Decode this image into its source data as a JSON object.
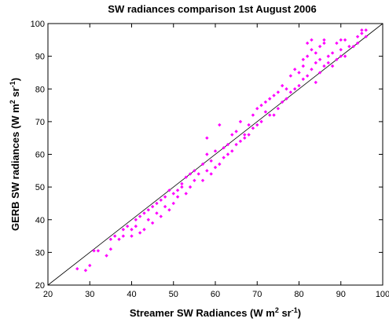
{
  "chart_data": {
    "type": "scatter",
    "title": "SW radiances comparison 1st August 2006",
    "xlabel": [
      "Streamer SW Radiances (W m",
      "2",
      " sr",
      "-1",
      ")"
    ],
    "ylabel": [
      "GERB SW radiances (W m",
      "2",
      " sr",
      "-1",
      ")"
    ],
    "xlim": [
      20,
      100
    ],
    "ylim": [
      20,
      100
    ],
    "xticks": [
      20,
      30,
      40,
      50,
      60,
      70,
      80,
      90,
      100
    ],
    "yticks": [
      20,
      30,
      40,
      50,
      60,
      70,
      80,
      90,
      100
    ],
    "color": "#ff00ff",
    "line_color": "#000000",
    "diagonal": {
      "x": [
        20,
        100
      ],
      "y": [
        20,
        100
      ]
    },
    "series": [
      {
        "x": [
          27,
          29,
          30,
          31,
          32,
          34,
          35,
          35,
          36,
          37,
          38,
          38,
          39,
          40,
          40,
          41,
          41,
          42,
          42,
          43,
          43,
          44,
          44,
          45,
          45,
          46,
          46,
          47,
          47,
          48,
          48,
          49,
          49,
          50,
          50,
          51,
          51,
          52,
          52,
          53,
          53,
          54,
          54,
          55,
          55,
          56,
          57,
          57,
          58,
          58,
          58,
          59,
          59,
          60,
          60,
          61,
          61,
          62,
          62,
          63,
          63,
          64,
          64,
          65,
          65,
          66,
          66,
          67,
          67,
          68,
          68,
          69,
          69,
          70,
          70,
          71,
          71,
          72,
          72,
          73,
          73,
          74,
          74,
          75,
          75,
          76,
          76,
          77,
          77,
          78,
          78,
          79,
          79,
          80,
          80,
          81,
          81,
          81,
          82,
          82,
          82,
          83,
          83,
          83,
          84,
          84,
          84,
          85,
          85,
          85,
          86,
          86,
          86,
          87,
          87,
          88,
          88,
          89,
          89,
          90,
          90,
          90,
          91,
          91,
          92,
          93,
          94,
          94,
          95,
          95,
          96,
          96
        ],
        "values": [
          25,
          24.5,
          26,
          30.5,
          30.5,
          29,
          31,
          34,
          35,
          34,
          37,
          35,
          38,
          35,
          37,
          38,
          40,
          36,
          41,
          37,
          42,
          40,
          43,
          39,
          44,
          42,
          45,
          41,
          46,
          44,
          47,
          49,
          43,
          48,
          45,
          49,
          47,
          51,
          50,
          48,
          53,
          54,
          50,
          52,
          55,
          54,
          57,
          52,
          65,
          60,
          55,
          58,
          54,
          56,
          61,
          57,
          69,
          59,
          62,
          60,
          63,
          66,
          61,
          63,
          67,
          64,
          70,
          66,
          65,
          69,
          66,
          72,
          68,
          69,
          74,
          75,
          70,
          73,
          76,
          77,
          72,
          72,
          78,
          79,
          74,
          76,
          81,
          80,
          77,
          79,
          84,
          80,
          86,
          85,
          81,
          89,
          83,
          87,
          94,
          90,
          84,
          95,
          86,
          92,
          91,
          88,
          82,
          93,
          89,
          85,
          94,
          95,
          87,
          90,
          88,
          87,
          91,
          89,
          94,
          95,
          92,
          90,
          95,
          90,
          93,
          93,
          96,
          94,
          97,
          98,
          96,
          98
        ]
      }
    ]
  }
}
